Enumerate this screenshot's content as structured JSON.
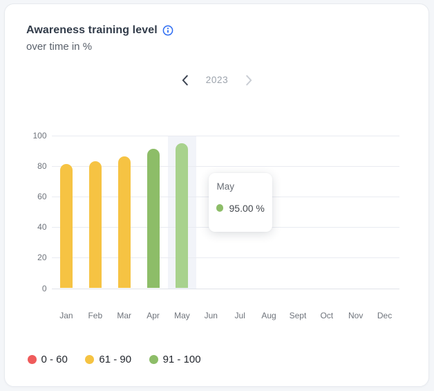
{
  "card": {
    "title": "Awareness training level",
    "subtitle": "over time in %",
    "info_icon": "info-icon",
    "accent_blue": "#2b6bf2"
  },
  "year_nav": {
    "prev_icon": "chevron-left-icon",
    "year": "2023",
    "next_icon": "chevron-right-icon"
  },
  "chart_data": {
    "type": "bar",
    "title": "Awareness training level",
    "subtitle": "over time in %",
    "year": "2023",
    "categories": [
      "Jan",
      "Feb",
      "Mar",
      "Apr",
      "May",
      "Jun",
      "Jul",
      "Aug",
      "Sept",
      "Oct",
      "Nov",
      "Dec"
    ],
    "values": [
      81,
      83,
      86,
      91,
      95,
      null,
      null,
      null,
      null,
      null,
      null,
      null
    ],
    "bar_colors": [
      "#f6c343",
      "#f6c343",
      "#f6c343",
      "#8dbd68",
      "#a8d28d",
      null,
      null,
      null,
      null,
      null,
      null,
      null
    ],
    "ylabel": "",
    "xlabel": "",
    "ylim": [
      0,
      100
    ],
    "yticks": [
      0,
      20,
      40,
      60,
      80,
      100
    ],
    "grid": true,
    "legend_position": "bottom-left",
    "highlighted_category": "May",
    "highlight_band_color": "#f2f4f9",
    "tooltip": {
      "title": "May",
      "value": "95.00 %",
      "marker_color": "#8dbd68"
    },
    "legend": [
      {
        "label": "0 - 60",
        "color": "#ef5b5b"
      },
      {
        "label": "61 - 90",
        "color": "#f5c342"
      },
      {
        "label": "91 - 100",
        "color": "#8dbd68"
      }
    ]
  }
}
